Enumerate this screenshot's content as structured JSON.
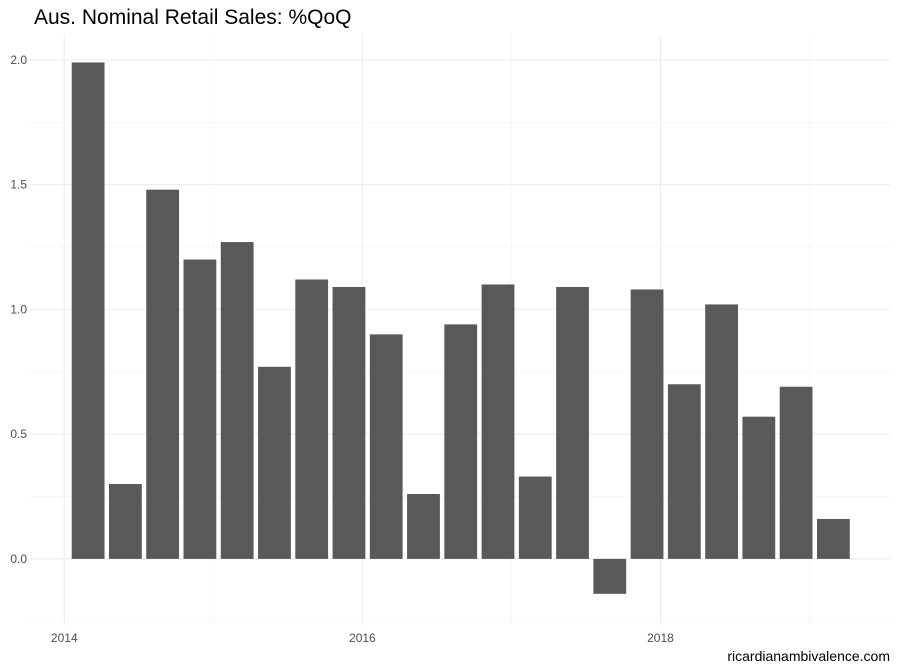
{
  "chart_data": {
    "type": "bar",
    "title": "Aus. Nominal Retail Sales: %QoQ",
    "caption": "ricardianambivalence.com",
    "xlabel": "",
    "ylabel": "",
    "x": [
      2014.16,
      2014.41,
      2014.66,
      2014.91,
      2015.16,
      2015.41,
      2015.66,
      2015.91,
      2016.16,
      2016.41,
      2016.66,
      2016.91,
      2017.16,
      2017.41,
      2017.66,
      2017.91,
      2018.16,
      2018.41,
      2018.66,
      2018.91,
      2019.16
    ],
    "values": [
      1.99,
      0.3,
      1.48,
      1.2,
      1.27,
      0.77,
      1.12,
      1.09,
      0.9,
      0.26,
      0.94,
      1.1,
      0.33,
      1.09,
      -0.14,
      1.08,
      0.7,
      1.02,
      0.57,
      0.69,
      0.16
    ],
    "bar_color": "#595959",
    "xlim": [
      2013.77,
      2019.54
    ],
    "ylim": [
      -0.265,
      2.1
    ],
    "xticks": [
      {
        "value": 2014,
        "label": "2014"
      },
      {
        "value": 2016,
        "label": "2016"
      },
      {
        "value": 2018,
        "label": "2018"
      }
    ],
    "yticks": [
      {
        "value": 0,
        "label": "0.0"
      },
      {
        "value": 0.5,
        "label": "0.5"
      },
      {
        "value": 1,
        "label": "1.0"
      },
      {
        "value": 1.5,
        "label": "1.5"
      },
      {
        "value": 2,
        "label": "2.0"
      }
    ],
    "grid": true,
    "legend": "none"
  }
}
